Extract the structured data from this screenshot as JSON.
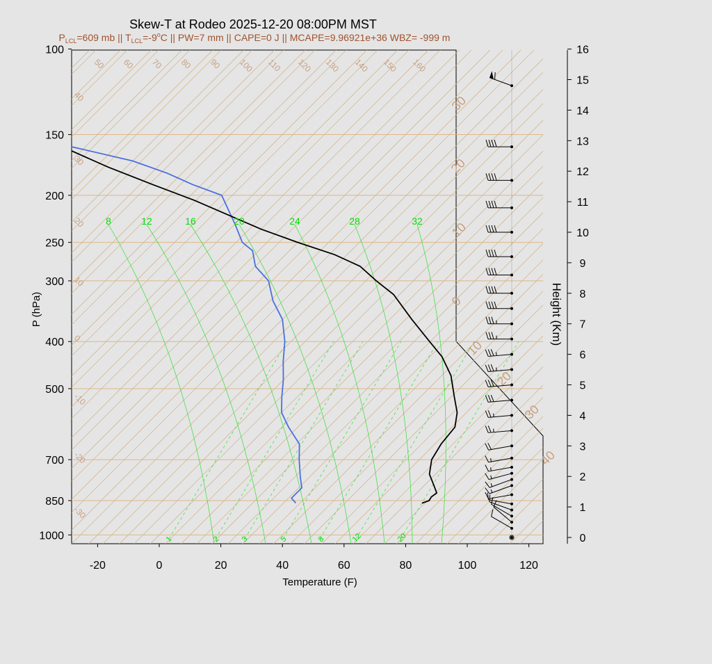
{
  "chart_data": {
    "type": "skew-t",
    "title": "Skew-T at Rodeo 2025-12-20 08:00PM MST",
    "subtitle": {
      "plcl_prefix": "P",
      "plcl_sub": "LCL",
      "plcl_value": "=609 mb || T",
      "tlcl_sub": "LCL",
      "rest": "=-9",
      "deg": "o",
      "rest2": "C || PW=7 mm || CAPE=0 J || MCAPE=9.96921e+36 WBZ= -999 m"
    },
    "xlabel": "Temperature (F)",
    "ylabel": "P (hPa)",
    "y2label": "Height (Km)",
    "x_ticks": [
      "-20",
      "0",
      "20",
      "40",
      "60",
      "80",
      "100",
      "120"
    ],
    "x_tick_values": [
      -20,
      0,
      20,
      40,
      60,
      80,
      100,
      120
    ],
    "p_ticks": [
      "100",
      "150",
      "200",
      "250",
      "300",
      "400",
      "500",
      "700",
      "850",
      "1000"
    ],
    "p_tick_values": [
      100,
      150,
      200,
      250,
      300,
      400,
      500,
      700,
      850,
      1000
    ],
    "height_ticks": [
      "0",
      "1",
      "2",
      "3",
      "4",
      "5",
      "6",
      "7",
      "8",
      "9",
      "10",
      "11",
      "12",
      "13",
      "14",
      "15",
      "16"
    ],
    "isotherm_labels_top": [
      "50",
      "60",
      "70",
      "80",
      "90",
      "100",
      "110",
      "120",
      "130",
      "140",
      "150",
      "160"
    ],
    "isotherm_labels_left": [
      "40",
      "30",
      "20",
      "10",
      "0",
      "-10",
      "-20",
      "-30"
    ],
    "dry_adiabat_labels": [
      "30",
      "20",
      "10",
      "0",
      "10",
      "20",
      "30",
      "40"
    ],
    "mixing_ratio_labels": [
      "8",
      "12",
      "16",
      "20",
      "24",
      "28",
      "32"
    ],
    "mixing_ratio_bottom_labels": [
      "1",
      "2",
      "3",
      "5",
      "8",
      "12",
      "20"
    ],
    "temperature_profile": {
      "color": "#000000",
      "points_F_hPa": [
        [
          75,
          860
        ],
        [
          76.5,
          850
        ],
        [
          76,
          835
        ],
        [
          76.5,
          820
        ],
        [
          73,
          790
        ],
        [
          68,
          750
        ],
        [
          64,
          700
        ],
        [
          62,
          650
        ],
        [
          61,
          600
        ],
        [
          57,
          560
        ],
        [
          51,
          520
        ],
        [
          43,
          470
        ],
        [
          34,
          430
        ],
        [
          25,
          400
        ],
        [
          12,
          360
        ],
        [
          -2,
          320
        ],
        [
          -12,
          300
        ],
        [
          -22,
          280
        ],
        [
          -34,
          265
        ],
        [
          -50,
          250
        ],
        [
          -66,
          235
        ],
        [
          -81,
          220
        ],
        [
          -97,
          205
        ],
        [
          -116,
          190
        ],
        [
          -136,
          175
        ],
        [
          -156,
          160
        ],
        [
          -174,
          150
        ],
        [
          -192,
          140
        ],
        [
          -210,
          130
        ],
        [
          -228,
          120
        ],
        [
          -246,
          110
        ],
        [
          -262,
          100
        ]
      ]
    },
    "dewpoint_profile": {
      "color": "#4a6fe0",
      "points_F_hPa": [
        [
          34,
          860
        ],
        [
          31,
          840
        ],
        [
          31,
          820
        ],
        [
          31,
          800
        ],
        [
          27,
          760
        ],
        [
          21,
          700
        ],
        [
          16,
          650
        ],
        [
          7,
          600
        ],
        [
          0,
          560
        ],
        [
          -5,
          520
        ],
        [
          -10,
          480
        ],
        [
          -16,
          440
        ],
        [
          -22,
          400
        ],
        [
          -30,
          360
        ],
        [
          -39,
          330
        ],
        [
          -47,
          300
        ],
        [
          -56,
          280
        ],
        [
          -62,
          260
        ],
        [
          -68,
          250
        ],
        [
          -76,
          230
        ],
        [
          -90,
          200
        ],
        [
          -103,
          190
        ],
        [
          -115,
          180
        ],
        [
          -130,
          170
        ],
        [
          -152,
          160
        ],
        [
          -175,
          150
        ],
        [
          -200,
          140
        ],
        [
          -222,
          130
        ],
        [
          -242,
          120
        ],
        [
          -262,
          110
        ],
        [
          -278,
          100
        ]
      ]
    },
    "wind_barbs": [
      {
        "height_km": 0.0,
        "speed_kt": 0,
        "dir": 0
      },
      {
        "height_km": 0.3,
        "speed_kt": 10,
        "dir": 300
      },
      {
        "height_km": 0.5,
        "speed_kt": 10,
        "dir": 310
      },
      {
        "height_km": 0.7,
        "speed_kt": 10,
        "dir": 300
      },
      {
        "height_km": 0.9,
        "speed_kt": 10,
        "dir": 290
      },
      {
        "height_km": 1.1,
        "speed_kt": 10,
        "dir": 280
      },
      {
        "height_km": 1.4,
        "speed_kt": 10,
        "dir": 260
      },
      {
        "height_km": 1.7,
        "speed_kt": 15,
        "dir": 250
      },
      {
        "height_km": 1.9,
        "speed_kt": 15,
        "dir": 250
      },
      {
        "height_km": 2.1,
        "speed_kt": 15,
        "dir": 255
      },
      {
        "height_km": 2.3,
        "speed_kt": 15,
        "dir": 260
      },
      {
        "height_km": 2.6,
        "speed_kt": 15,
        "dir": 260
      },
      {
        "height_km": 3.0,
        "speed_kt": 20,
        "dir": 260
      },
      {
        "height_km": 3.5,
        "speed_kt": 25,
        "dir": 265
      },
      {
        "height_km": 4.0,
        "speed_kt": 25,
        "dir": 265
      },
      {
        "height_km": 4.5,
        "speed_kt": 30,
        "dir": 265
      },
      {
        "height_km": 5.0,
        "speed_kt": 30,
        "dir": 265
      },
      {
        "height_km": 5.5,
        "speed_kt": 35,
        "dir": 265
      },
      {
        "height_km": 6.0,
        "speed_kt": 35,
        "dir": 265
      },
      {
        "height_km": 6.5,
        "speed_kt": 35,
        "dir": 270
      },
      {
        "height_km": 7.0,
        "speed_kt": 35,
        "dir": 270
      },
      {
        "height_km": 7.5,
        "speed_kt": 40,
        "dir": 270
      },
      {
        "height_km": 8.0,
        "speed_kt": 40,
        "dir": 270
      },
      {
        "height_km": 8.6,
        "speed_kt": 40,
        "dir": 270
      },
      {
        "height_km": 9.2,
        "speed_kt": 40,
        "dir": 270
      },
      {
        "height_km": 10.0,
        "speed_kt": 40,
        "dir": 270
      },
      {
        "height_km": 10.8,
        "speed_kt": 40,
        "dir": 270
      },
      {
        "height_km": 11.7,
        "speed_kt": 40,
        "dir": 270
      },
      {
        "height_km": 12.8,
        "speed_kt": 40,
        "dir": 270
      },
      {
        "height_km": 14.8,
        "speed_kt": 60,
        "dir": 290
      }
    ],
    "colors": {
      "background": "#e5e5e5",
      "isotherm": "#d2b48c",
      "isobar": "#deb887",
      "mixing_ratio": "#33dd33",
      "temperature": "#000000",
      "dewpoint": "#4a6fe0",
      "subtitle": "#a0522d",
      "label_green": "#00dd00",
      "label_tan": "#c8a080"
    }
  }
}
